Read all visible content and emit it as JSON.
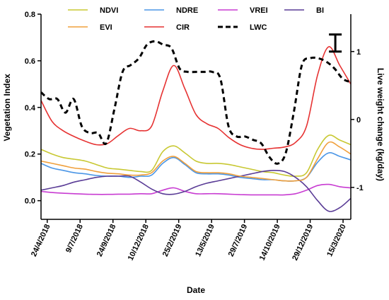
{
  "chart_data": {
    "type": "line",
    "title": "",
    "xlabel": "Date",
    "ylabel": "Vegetation Index",
    "y2label": "Live weight change (kg/day)",
    "x_tick_labels": [
      "24/4/2018",
      "9/7/2018",
      "24/9/2018",
      "10/12/2018",
      "25/2/2019",
      "13/5/2019",
      "29/7/2019",
      "14/10/2019",
      "29/12/2019",
      "15/3/2020"
    ],
    "ylim": [
      -0.08,
      0.8
    ],
    "y_ticks": [
      "0.0",
      "0.2",
      "0.4",
      "0.6",
      "0.8"
    ],
    "y2lim": [
      -1.47,
      1.55
    ],
    "y2_ticks": [
      "-1",
      "0",
      "1"
    ],
    "grid": false,
    "legend_position": "top, inside",
    "series": [
      {
        "name": "NDVI",
        "axis": "left",
        "style": "solid",
        "color": "#c8c832",
        "values": [
          0.22,
          0.2,
          0.185,
          0.178,
          0.17,
          0.155,
          0.14,
          0.135,
          0.13,
          0.125,
          0.13,
          0.21,
          0.235,
          0.205,
          0.17,
          0.16,
          0.16,
          0.155,
          0.145,
          0.135,
          0.125,
          0.12,
          0.11,
          0.105,
          0.12,
          0.22,
          0.28,
          0.26,
          0.24
        ]
      },
      {
        "name": "NDRE",
        "axis": "left",
        "style": "solid",
        "color": "#4b96e6",
        "values": [
          0.16,
          0.14,
          0.13,
          0.12,
          0.115,
          0.108,
          0.105,
          0.105,
          0.1,
          0.105,
          0.11,
          0.16,
          0.185,
          0.155,
          0.12,
          0.115,
          0.115,
          0.11,
          0.1,
          0.095,
          0.09,
          0.09,
          0.085,
          0.085,
          0.1,
          0.165,
          0.205,
          0.19,
          0.175
        ]
      },
      {
        "name": "VREI",
        "axis": "left",
        "style": "solid",
        "color": "#c83cd2",
        "values": [
          0.04,
          0.035,
          0.032,
          0.03,
          0.028,
          0.027,
          0.027,
          0.028,
          0.028,
          0.03,
          0.03,
          0.045,
          0.055,
          0.04,
          0.03,
          0.03,
          0.03,
          0.028,
          0.026,
          0.025,
          0.025,
          0.025,
          0.025,
          0.03,
          0.045,
          0.065,
          0.07,
          0.06,
          0.055
        ]
      },
      {
        "name": "BI",
        "axis": "left",
        "style": "solid",
        "color": "#5a3c96",
        "values": [
          0.045,
          0.055,
          0.065,
          0.08,
          0.09,
          0.1,
          0.105,
          0.105,
          0.105,
          0.08,
          0.05,
          0.03,
          0.028,
          0.04,
          0.06,
          0.075,
          0.085,
          0.095,
          0.105,
          0.115,
          0.125,
          0.13,
          0.125,
          0.1,
          0.06,
          0.0,
          -0.045,
          -0.03,
          0.01
        ]
      },
      {
        "name": "EVI",
        "axis": "left",
        "style": "solid",
        "color": "#f0a03c",
        "values": [
          0.17,
          0.16,
          0.15,
          0.14,
          0.135,
          0.125,
          0.118,
          0.115,
          0.11,
          0.11,
          0.12,
          0.17,
          0.19,
          0.16,
          0.125,
          0.12,
          0.12,
          0.115,
          0.105,
          0.1,
          0.095,
          0.09,
          0.085,
          0.085,
          0.1,
          0.18,
          0.25,
          0.23,
          0.2
        ]
      },
      {
        "name": "CIR",
        "axis": "left",
        "style": "solid",
        "color": "#e63232",
        "values": [
          0.43,
          0.34,
          0.3,
          0.275,
          0.255,
          0.24,
          0.245,
          0.28,
          0.31,
          0.3,
          0.32,
          0.47,
          0.58,
          0.48,
          0.37,
          0.33,
          0.31,
          0.27,
          0.24,
          0.225,
          0.22,
          0.225,
          0.23,
          0.25,
          0.32,
          0.54,
          0.66,
          0.58,
          0.5
        ]
      },
      {
        "name": "LWC",
        "axis": "right",
        "style": "dashed",
        "color": "#000000",
        "values": [
          0.4,
          0.3,
          0.3,
          0.1,
          0.3,
          -0.1,
          -0.2,
          -0.2,
          -0.35,
          0.15,
          0.7,
          0.8,
          0.9,
          1.1,
          1.15,
          1.1,
          1.05,
          0.75,
          0.7,
          0.7,
          0.7,
          0.7,
          0.6,
          -0.1,
          -0.25,
          -0.25,
          -0.3,
          -0.35,
          -0.55,
          -0.65,
          -0.5,
          0.1,
          0.8,
          0.9,
          0.9,
          0.85,
          0.75,
          0.6,
          0.55
        ]
      }
    ],
    "error_bar": {
      "axis": "right",
      "at_fraction": 0.95,
      "low": 1.0,
      "high": 1.25
    }
  }
}
